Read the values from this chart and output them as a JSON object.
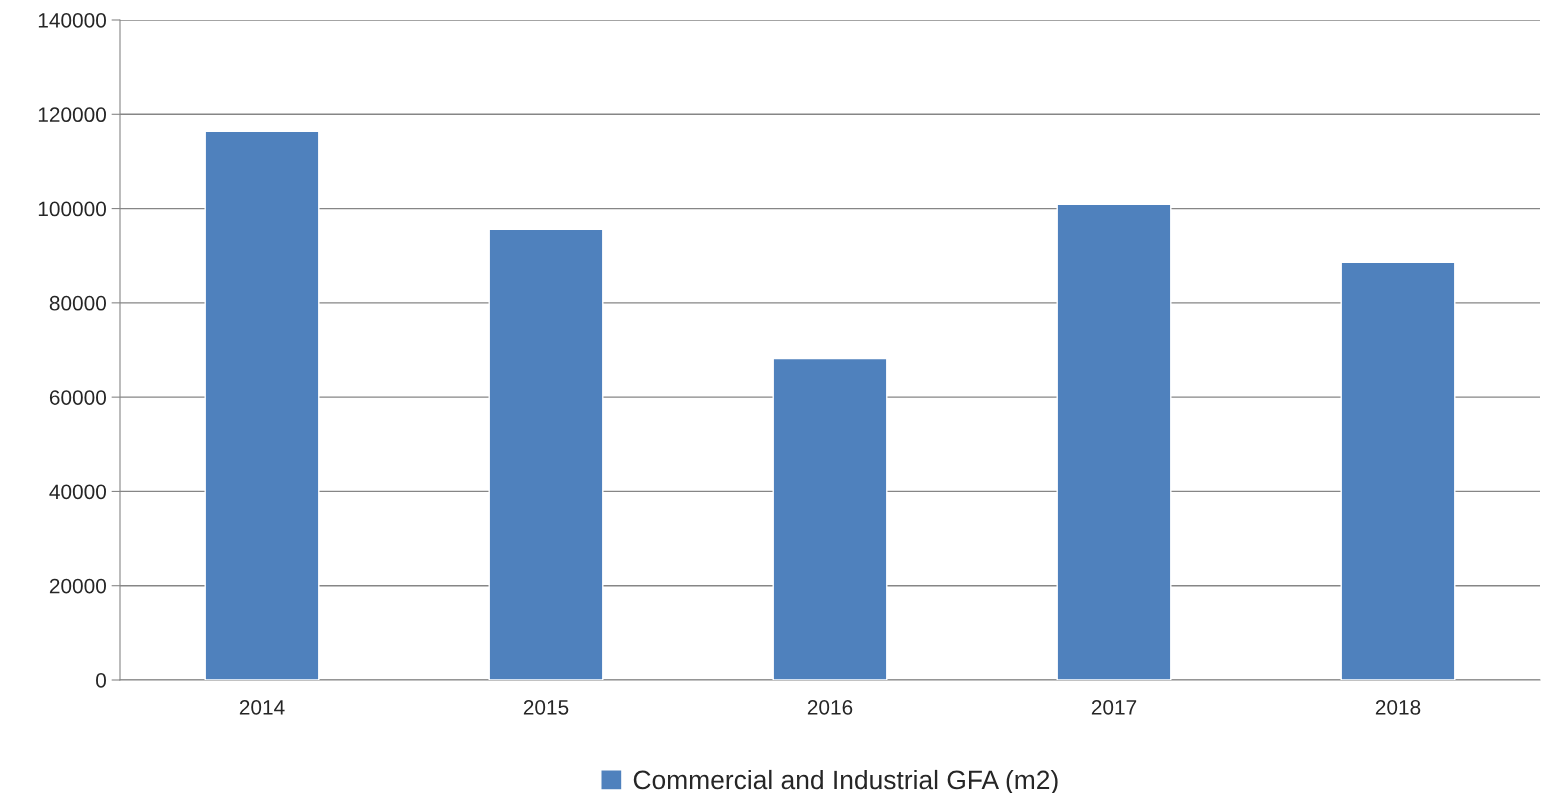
{
  "chart_data": {
    "type": "bar",
    "categories": [
      "2014",
      "2015",
      "2016",
      "2017",
      "2018"
    ],
    "series": [
      {
        "name": "Commercial and Industrial GFA (m2)",
        "color": "#4f81bd",
        "values": [
          116400,
          95600,
          68200,
          100900,
          88600
        ]
      }
    ],
    "ylim": [
      0,
      140000
    ],
    "yticks": [
      0,
      20000,
      40000,
      60000,
      80000,
      100000,
      120000,
      140000
    ],
    "grid": "y",
    "legend": "bottom"
  }
}
